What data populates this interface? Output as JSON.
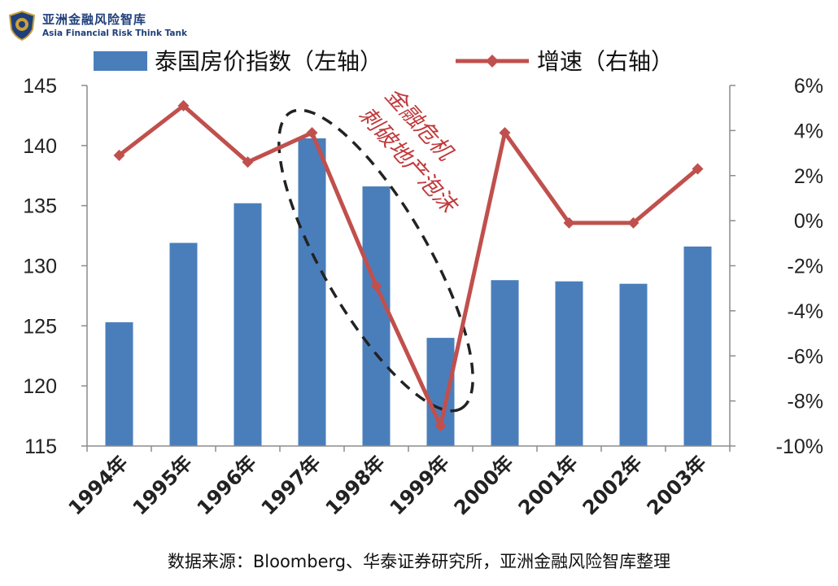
{
  "brand": {
    "name_zh": "亚洲金融风险智库",
    "name_en": "Asia Financial Risk Think Tank"
  },
  "chart_data": {
    "type": "bar+line",
    "categories": [
      "1994年",
      "1995年",
      "1996年",
      "1997年",
      "1998年",
      "1999年",
      "2000年",
      "2001年",
      "2002年",
      "2003年"
    ],
    "series": [
      {
        "name": "泰国房价指数（左轴）",
        "type": "bar",
        "axis": "left",
        "color": "#4a7ebb",
        "values": [
          125.3,
          131.9,
          135.2,
          140.6,
          136.6,
          124.0,
          128.8,
          128.7,
          128.5,
          131.6
        ]
      },
      {
        "name": "增速（右轴）",
        "type": "line",
        "axis": "right",
        "color": "#c0504d",
        "values": [
          2.9,
          5.1,
          2.6,
          3.9,
          -2.9,
          -9.1,
          3.9,
          -0.1,
          -0.1,
          2.3
        ]
      }
    ],
    "left_axis": {
      "ylim": [
        115,
        145
      ],
      "ticks": [
        "115",
        "120",
        "125",
        "130",
        "135",
        "140",
        "145"
      ]
    },
    "right_axis": {
      "ylim": [
        -10,
        6
      ],
      "ticks": [
        "-10%",
        "-8%",
        "-6%",
        "-4%",
        "-2%",
        "0%",
        "2%",
        "4%",
        "6%"
      ]
    },
    "legend_position": "top",
    "grid": false,
    "annotation": {
      "lines": [
        "金融危机",
        "刺破地产泡沫"
      ],
      "color": "#c0393b",
      "highlighted_categories": [
        "1997年",
        "1998年",
        "1999年"
      ]
    }
  },
  "source": "数据来源：Bloomberg、华泰证券研究所，亚洲金融风险智库整理"
}
